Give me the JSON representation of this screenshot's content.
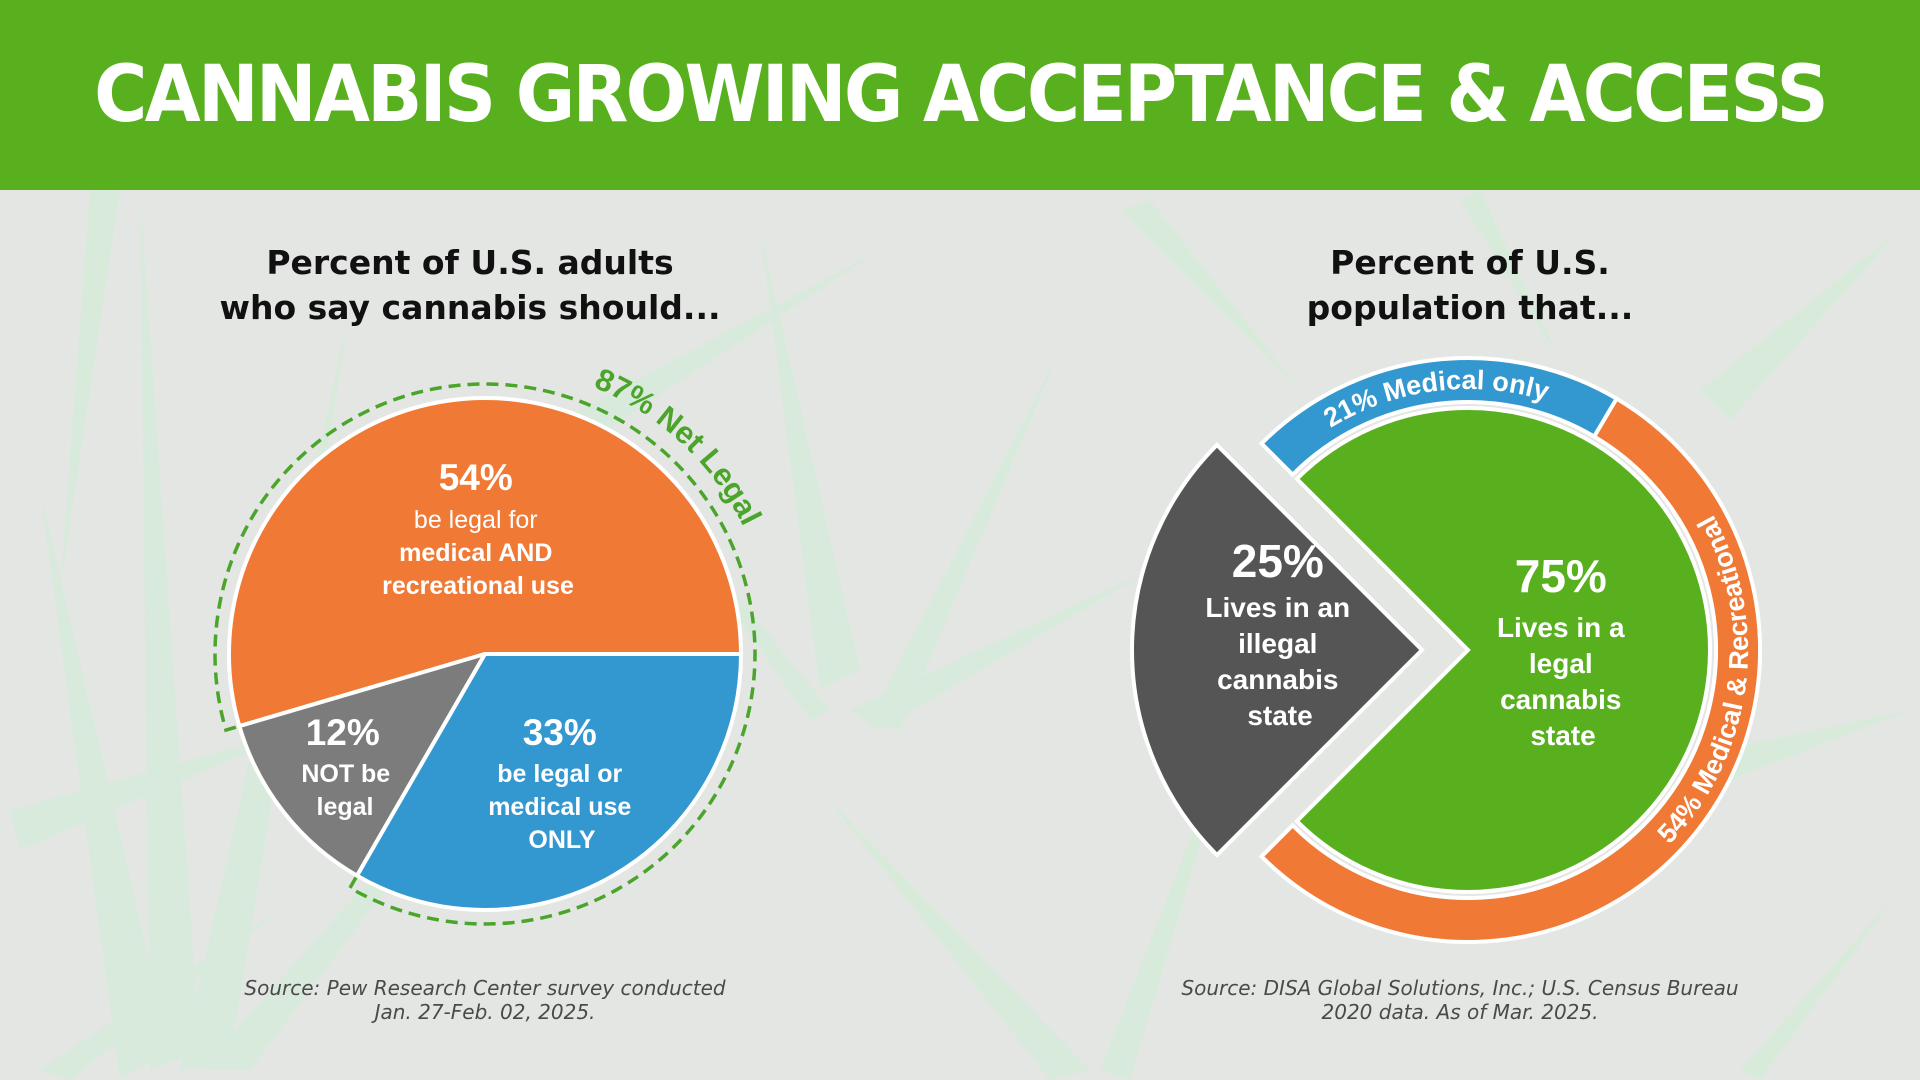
{
  "header": {
    "title": "CANNABIS GROWING ACCEPTANCE & ACCESS"
  },
  "colors": {
    "brand_green": "#58b01f",
    "orange": "#f07935",
    "blue": "#3498d0",
    "gray": "#7c7c7c",
    "dark_gray": "#555555",
    "net_legal_green": "#4aa52a"
  },
  "left": {
    "subtitle_line1": "Percent of U.S. adults",
    "subtitle_line2": "who say cannabis should...",
    "source_line1": "Source: Pew Research Center survey conducted",
    "source_line2": "Jan. 27-Feb. 02, 2025."
  },
  "right": {
    "subtitle_line1": "Percent of U.S.",
    "subtitle_line2": "population that...",
    "source_line1": "Source: DISA Global Solutions, Inc.; U.S. Census Bureau",
    "source_line2": "2020 data. As of Mar. 2025."
  },
  "chart_data": [
    {
      "type": "pie",
      "title": "Percent of U.S. adults who say cannabis should...",
      "slices": [
        {
          "value": 54,
          "pct_label": "54%",
          "lines": [
            "be legal for",
            "medical AND",
            "recreational use"
          ],
          "color": "#f07935"
        },
        {
          "value": 12,
          "pct_label": "12%",
          "lines": [
            "NOT be",
            "legal"
          ],
          "color": "#7c7c7c"
        },
        {
          "value": 33,
          "pct_label": "33%",
          "lines": [
            "be legal or",
            "medical use",
            "ONLY"
          ],
          "color": "#3498d0"
        }
      ],
      "annotation": {
        "value": 87,
        "label": "87% Net Legal"
      }
    },
    {
      "type": "pie",
      "title": "Percent of U.S. population that...",
      "inner": [
        {
          "value": 75,
          "pct_label": "75%",
          "lines": [
            "Lives in a",
            "legal",
            "cannabis",
            "state"
          ],
          "color": "#58b01f"
        },
        {
          "value": 25,
          "pct_label": "25%",
          "lines": [
            "Lives in an",
            "illegal",
            "cannabis",
            "state"
          ],
          "color": "#555555"
        }
      ],
      "outer_ring": [
        {
          "value": 21,
          "label": "21% Medical only",
          "color": "#3498d0"
        },
        {
          "value": 54,
          "label": "54% Medical & Recreational",
          "color": "#f07935"
        }
      ]
    }
  ]
}
